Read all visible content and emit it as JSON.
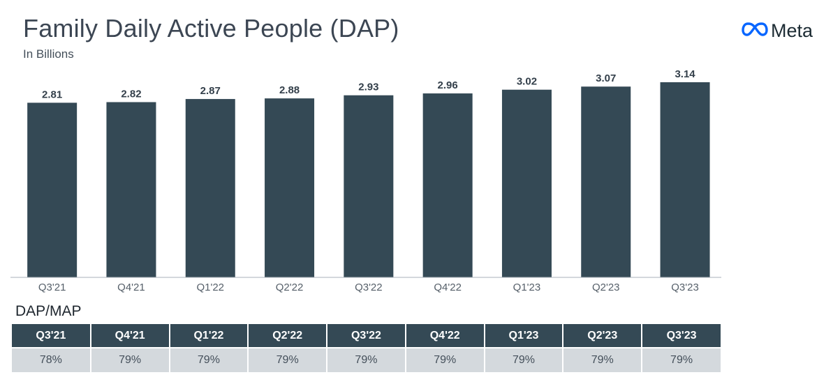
{
  "header": {
    "title": "Family Daily Active People (DAP)",
    "subtitle": "In Billions"
  },
  "brand": {
    "name": "Meta",
    "icon": "meta-infinity-logo-icon",
    "color": "#0866ff"
  },
  "chart_data": {
    "type": "bar",
    "title": "Family Daily Active People (DAP)",
    "subtitle": "In Billions",
    "categories": [
      "Q3'21",
      "Q4'21",
      "Q1'22",
      "Q2'22",
      "Q3'22",
      "Q4'22",
      "Q1'23",
      "Q2'23",
      "Q3'23"
    ],
    "values": [
      2.81,
      2.82,
      2.87,
      2.88,
      2.93,
      2.96,
      3.02,
      3.07,
      3.14
    ],
    "value_labels": [
      "2.81",
      "2.82",
      "2.87",
      "2.88",
      "2.93",
      "2.96",
      "3.02",
      "3.07",
      "3.14"
    ],
    "ylim": [
      0,
      3.14
    ],
    "xlabel": "",
    "ylabel": "",
    "grid": false,
    "bar_color": "#344955"
  },
  "ratio_table": {
    "title": "DAP/MAP",
    "headers": [
      "Q3'21",
      "Q4'21",
      "Q1'22",
      "Q2'22",
      "Q3'22",
      "Q4'22",
      "Q1'23",
      "Q2'23",
      "Q3'23"
    ],
    "values": [
      "78%",
      "79%",
      "79%",
      "79%",
      "79%",
      "79%",
      "79%",
      "79%",
      "79%"
    ]
  },
  "colors": {
    "bar": "#344955",
    "header_bg": "#344955",
    "cell_bg": "#d4d9dd",
    "text": "#3c4653"
  }
}
